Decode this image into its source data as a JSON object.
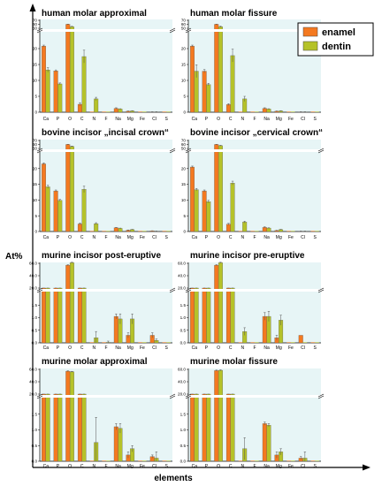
{
  "figure": {
    "ylabel": "At%",
    "xlabel": "elements",
    "legend": [
      {
        "name": "enamel",
        "color": "#f47920"
      },
      {
        "name": "dentin",
        "color": "#b5c229"
      }
    ]
  },
  "chart_data": [
    {
      "type": "bar",
      "title": "human molar approximal",
      "categories": [
        "Ca",
        "P",
        "O",
        "C",
        "N",
        "F",
        "Na",
        "Mg",
        "Fe",
        "Cl",
        "S"
      ],
      "y_axis": {
        "lower_range": [
          0,
          25
        ],
        "lower_ticks": [
          0,
          5,
          10,
          15,
          20
        ],
        "upper_ticks": [
          50,
          60,
          70
        ],
        "break": true
      },
      "series": [
        {
          "name": "enamel",
          "values": [
            20.8,
            13.0,
            60.0,
            2.5,
            0.0,
            0.0,
            1.2,
            0.3,
            0.0,
            0.1,
            0.0
          ],
          "errors": [
            0.3,
            0.3,
            0.5,
            0.5,
            0,
            0,
            0.2,
            0.1,
            0,
            0.05,
            0
          ]
        },
        {
          "name": "dentin",
          "values": [
            13.3,
            8.9,
            54.0,
            17.5,
            4.2,
            0.0,
            1.0,
            0.4,
            0.0,
            0.1,
            0.0
          ],
          "errors": [
            0.7,
            0.3,
            1.0,
            2.0,
            0.5,
            0,
            0.1,
            0.1,
            0,
            0.05,
            0
          ]
        }
      ]
    },
    {
      "type": "bar",
      "title": "human molar fissure",
      "categories": [
        "Ca",
        "P",
        "O",
        "C",
        "N",
        "F",
        "Na",
        "Mg",
        "Fe",
        "Cl",
        "S"
      ],
      "y_axis": {
        "lower_range": [
          0,
          25
        ],
        "lower_ticks": [
          0,
          5,
          10,
          15,
          20
        ],
        "upper_ticks": [
          50,
          60,
          70
        ],
        "break": true
      },
      "series": [
        {
          "name": "enamel",
          "values": [
            20.8,
            12.9,
            60.0,
            2.4,
            0.0,
            0.0,
            1.2,
            0.3,
            0.0,
            0.1,
            0.0
          ],
          "errors": [
            0.3,
            0.5,
            0.5,
            0.3,
            0,
            0,
            0.2,
            0.1,
            0,
            0.05,
            0
          ]
        },
        {
          "name": "dentin",
          "values": [
            12.9,
            8.7,
            54.0,
            17.8,
            4.2,
            0.0,
            1.0,
            0.4,
            0.0,
            0.1,
            0.0
          ],
          "errors": [
            2.0,
            0.4,
            1.5,
            2.0,
            0.8,
            0,
            0.1,
            0.1,
            0,
            0.05,
            0
          ]
        }
      ]
    },
    {
      "type": "bar",
      "title": "bovine incisor „incisal crown“",
      "categories": [
        "Ca",
        "P",
        "O",
        "C",
        "N",
        "F",
        "Na",
        "Mg",
        "Fe",
        "Cl",
        "S"
      ],
      "y_axis": {
        "lower_range": [
          0,
          25
        ],
        "lower_ticks": [
          0,
          5,
          10,
          15,
          20
        ],
        "upper_ticks": [
          50,
          60,
          70
        ],
        "break": true
      },
      "series": [
        {
          "name": "enamel",
          "values": [
            21.5,
            12.9,
            60.0,
            2.4,
            0.0,
            0.0,
            1.2,
            0.4,
            0.0,
            0.2,
            0.0
          ],
          "errors": [
            0.3,
            0.3,
            0.5,
            0.3,
            0,
            0,
            0.1,
            0.1,
            0,
            0.05,
            0
          ]
        },
        {
          "name": "dentin",
          "values": [
            14.2,
            9.9,
            55.0,
            13.4,
            2.5,
            0.0,
            1.0,
            0.6,
            0.0,
            0.1,
            0.0
          ],
          "errors": [
            0.5,
            0.3,
            1.0,
            1.0,
            0.3,
            0,
            0.1,
            0.1,
            0,
            0.05,
            0
          ]
        }
      ]
    },
    {
      "type": "bar",
      "title": "bovine incisor „cervical crown“",
      "categories": [
        "Ca",
        "P",
        "O",
        "C",
        "N",
        "F",
        "Na",
        "Mg",
        "Fe",
        "Cl",
        "S"
      ],
      "y_axis": {
        "lower_range": [
          0,
          25
        ],
        "lower_ticks": [
          0,
          5,
          10,
          15,
          20
        ],
        "upper_ticks": [
          50,
          60,
          70
        ],
        "break": true
      },
      "series": [
        {
          "name": "enamel",
          "values": [
            20.5,
            12.9,
            60.0,
            2.3,
            0.0,
            0.0,
            1.3,
            0.3,
            0.0,
            0.1,
            0.0
          ],
          "errors": [
            0.3,
            0.3,
            0.5,
            0.3,
            0,
            0,
            0.2,
            0.1,
            0,
            0.05,
            0
          ]
        },
        {
          "name": "dentin",
          "values": [
            13.3,
            9.5,
            57.0,
            15.4,
            3.0,
            0.0,
            1.1,
            0.6,
            0.0,
            0.1,
            0.0
          ],
          "errors": [
            0.4,
            0.4,
            1.0,
            0.6,
            0.3,
            0,
            0.1,
            0.1,
            0,
            0.05,
            0
          ]
        }
      ]
    },
    {
      "type": "bar",
      "title": "murine incisor post-eruptive",
      "categories": [
        "Ca",
        "P",
        "O",
        "C",
        "N",
        "F",
        "Na",
        "Mg",
        "Fe",
        "Cl",
        "S"
      ],
      "y_axis": {
        "lower_range": [
          0,
          2.0
        ],
        "lower_ticks": [
          0.0,
          0.5,
          1.0,
          1.5
        ],
        "upper_ticks": [
          20.0,
          40.0,
          60.0
        ],
        "break": true
      },
      "series": [
        {
          "name": "enamel",
          "values": [
            19.0,
            17.5,
            57.0,
            17.0,
            0.0,
            0.0,
            1.05,
            0.3,
            0.0,
            0.3,
            0.0
          ],
          "errors": [
            0.5,
            0.5,
            0.8,
            0.5,
            0,
            0,
            0.1,
            0.1,
            0,
            0.1,
            0
          ]
        },
        {
          "name": "dentin",
          "values": [
            17.0,
            17.0,
            61.0,
            16.5,
            0.2,
            0.02,
            0.95,
            0.95,
            0.0,
            0.1,
            0.0
          ],
          "errors": [
            0.5,
            0.5,
            0.8,
            0.8,
            0.25,
            0.05,
            0.2,
            0.2,
            0,
            0.05,
            0
          ]
        }
      ]
    },
    {
      "type": "bar",
      "title": "murine incisor pre-eruptive",
      "categories": [
        "Ca",
        "P",
        "O",
        "C",
        "N",
        "F",
        "Na",
        "Mg",
        "Fe",
        "Cl",
        "S"
      ],
      "y_axis": {
        "lower_range": [
          0,
          2.0
        ],
        "lower_ticks": [
          0.0,
          0.5,
          1.0,
          1.5
        ],
        "upper_ticks": [
          20.0,
          40.0,
          60.0
        ],
        "break": true
      },
      "series": [
        {
          "name": "enamel",
          "values": [
            19.0,
            17.5,
            57.0,
            17.0,
            0.0,
            0.0,
            1.05,
            0.2,
            0.0,
            0.3,
            0.0
          ],
          "errors": [
            0.5,
            0.5,
            0.8,
            0.5,
            0,
            0,
            0.15,
            0.1,
            0,
            0,
            0
          ]
        },
        {
          "name": "dentin",
          "values": [
            17.0,
            17.0,
            61.0,
            16.5,
            0.45,
            0.0,
            1.05,
            0.9,
            0.0,
            0.0,
            0.0
          ],
          "errors": [
            0.5,
            0.5,
            0.8,
            0.8,
            0.15,
            0,
            0.2,
            0.2,
            0,
            0,
            0
          ]
        }
      ]
    },
    {
      "type": "bar",
      "title": "murine molar approximal",
      "categories": [
        "Ca",
        "P",
        "O",
        "C",
        "N",
        "F",
        "Na",
        "Mg",
        "Fe",
        "Cl",
        "S"
      ],
      "y_axis": {
        "lower_range": [
          0,
          2.0
        ],
        "lower_ticks": [
          0.0,
          0.5,
          1.0,
          1.5
        ],
        "upper_ticks": [
          20.0,
          40.0,
          60.0
        ],
        "break": true
      },
      "series": [
        {
          "name": "enamel",
          "values": [
            19.0,
            17.5,
            57.0,
            16.5,
            0.0,
            0.0,
            1.1,
            0.2,
            0.0,
            0.15,
            0.0
          ],
          "errors": [
            0.5,
            0.5,
            0.8,
            0.5,
            0,
            0,
            0.1,
            0.1,
            0,
            0.05,
            0
          ]
        },
        {
          "name": "dentin",
          "values": [
            17.5,
            17.0,
            56.0,
            18.0,
            0.6,
            0.0,
            1.05,
            0.4,
            0.0,
            0.1,
            0.0
          ],
          "errors": [
            0.5,
            0.5,
            0.8,
            1.0,
            0.8,
            0,
            0.15,
            0.1,
            0,
            0.2,
            0
          ]
        }
      ]
    },
    {
      "type": "bar",
      "title": "murine molar fissure",
      "categories": [
        "Ca",
        "P",
        "O",
        "C",
        "N",
        "F",
        "Na",
        "Mg",
        "Fe",
        "Cl",
        "S"
      ],
      "y_axis": {
        "lower_range": [
          0,
          2.0
        ],
        "lower_ticks": [
          0.0,
          0.5,
          1.0,
          1.5
        ],
        "upper_ticks": [
          20.0,
          40.0,
          60.0
        ],
        "break": true
      },
      "series": [
        {
          "name": "enamel",
          "values": [
            19.0,
            17.5,
            58.0,
            16.0,
            0.0,
            0.0,
            1.2,
            0.2,
            0.0,
            0.1,
            0.0
          ],
          "errors": [
            0.5,
            0.5,
            0.8,
            0.5,
            0,
            0,
            0.05,
            0.1,
            0,
            0.05,
            0
          ]
        },
        {
          "name": "dentin",
          "values": [
            17.5,
            17.0,
            58.5,
            16.5,
            0.4,
            0.0,
            1.15,
            0.3,
            0.0,
            0.1,
            0.0
          ],
          "errors": [
            0.5,
            0.5,
            0.8,
            0.8,
            0.35,
            0,
            0.05,
            0.1,
            0,
            0.2,
            0
          ]
        }
      ]
    }
  ]
}
